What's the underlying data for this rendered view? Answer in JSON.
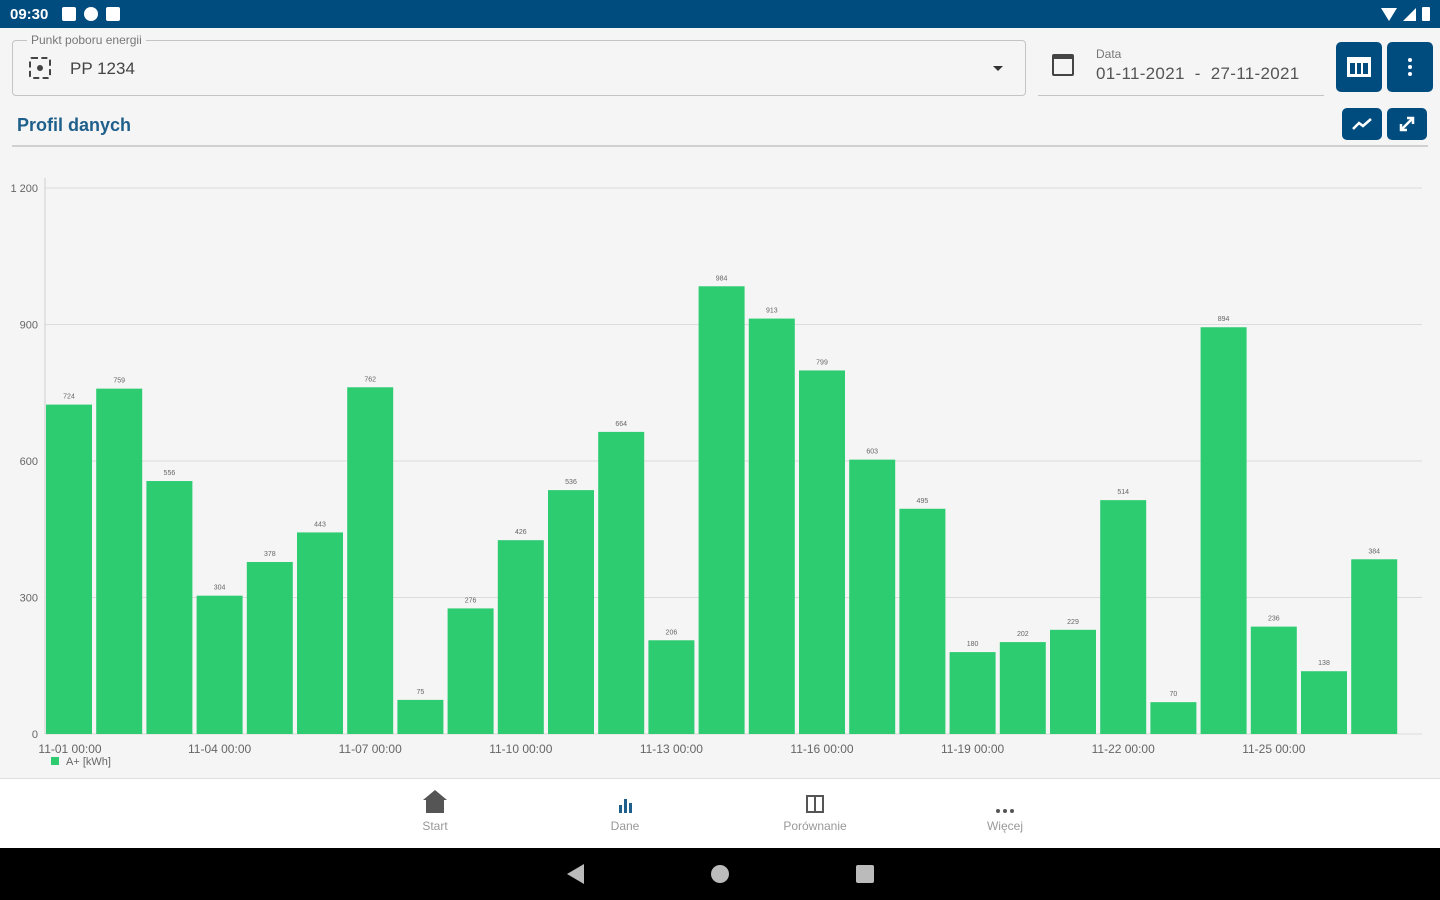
{
  "status_bar": {
    "time": "09:30"
  },
  "filters": {
    "point_label": "Punkt poboru energii",
    "point_value": "PP 1234",
    "date_label": "Data",
    "date_from": "01-11-2021",
    "date_separator": "-",
    "date_to": "27-11-2021"
  },
  "section": {
    "title": "Profil danych"
  },
  "colors": {
    "accent": "#004c7f",
    "bar": "#2ecc71",
    "title": "#1f5f8b"
  },
  "chart_data": {
    "type": "bar",
    "x": [
      "11-01",
      "11-02",
      "11-03",
      "11-04",
      "11-05",
      "11-06",
      "11-07",
      "11-08",
      "11-09",
      "11-10",
      "11-11",
      "11-12",
      "11-13",
      "11-14",
      "11-15",
      "11-16",
      "11-17",
      "11-18",
      "11-19",
      "11-20",
      "11-21",
      "11-22",
      "11-23",
      "11-24",
      "11-25",
      "11-26",
      "11-27"
    ],
    "values": [
      724,
      759,
      556,
      304,
      378,
      443,
      762,
      75,
      276,
      426,
      536,
      664,
      206,
      984,
      913,
      799,
      603,
      495,
      180,
      202,
      229,
      514,
      70,
      894,
      236,
      138,
      384
    ],
    "xticks": [
      {
        "index": 0,
        "label": "11-01 00:00"
      },
      {
        "index": 3,
        "label": "11-04 00:00"
      },
      {
        "index": 6,
        "label": "11-07 00:00"
      },
      {
        "index": 9,
        "label": "11-10 00:00"
      },
      {
        "index": 12,
        "label": "11-13 00:00"
      },
      {
        "index": 15,
        "label": "11-16 00:00"
      },
      {
        "index": 18,
        "label": "11-19 00:00"
      },
      {
        "index": 21,
        "label": "11-22 00:00"
      },
      {
        "index": 24,
        "label": "11-25 00:00"
      }
    ],
    "yticks": [
      {
        "value": 0,
        "label": "0"
      },
      {
        "value": 300,
        "label": "300"
      },
      {
        "value": 600,
        "label": "600"
      },
      {
        "value": 900,
        "label": "900"
      },
      {
        "value": 1200,
        "label": "1 200"
      }
    ],
    "ylim": [
      0,
      1200
    ],
    "legend": "A+ [kWh]",
    "legend_position": "bottom-left",
    "grid": true
  },
  "bottom_nav": {
    "items": [
      {
        "label": "Start",
        "icon": "home-icon"
      },
      {
        "label": "Dane",
        "icon": "bar-chart-icon"
      },
      {
        "label": "Porównanie",
        "icon": "compare-icon"
      },
      {
        "label": "Więcej",
        "icon": "more-icon"
      }
    ]
  }
}
